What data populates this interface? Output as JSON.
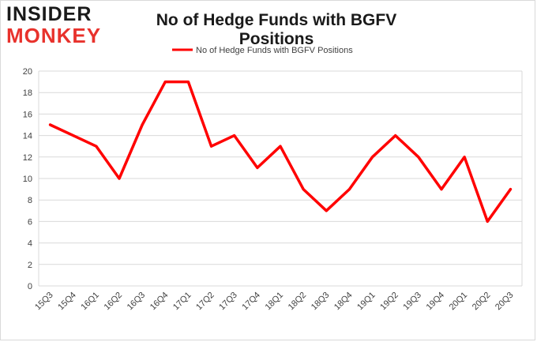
{
  "brand": {
    "line1": "INSIDER",
    "line2": "MONKEY"
  },
  "colors": {
    "series": "#ff0000",
    "grid": "#d9d9d9",
    "axis_text": "#404040",
    "brand_red": "#e8322c"
  },
  "chart_data": {
    "type": "line",
    "title": "No of Hedge Funds with BGFV Positions",
    "xlabel": "",
    "ylabel": "",
    "categories": [
      "15Q3",
      "15Q4",
      "16Q1",
      "16Q2",
      "16Q3",
      "16Q4",
      "17Q1",
      "17Q2",
      "17Q3",
      "17Q4",
      "18Q1",
      "18Q2",
      "18Q3",
      "18Q4",
      "19Q1",
      "19Q2",
      "19Q3",
      "19Q4",
      "20Q1",
      "20Q2",
      "20Q3"
    ],
    "series": [
      {
        "name": "No of Hedge Funds with BGFV Positions",
        "values": [
          15,
          14,
          13,
          10,
          15,
          19,
          19,
          13,
          14,
          11,
          13,
          9,
          7,
          9,
          12,
          14,
          12,
          9,
          12,
          6,
          9
        ]
      }
    ],
    "ylim": [
      0,
      20
    ],
    "yticks": [
      0,
      2,
      4,
      6,
      8,
      10,
      12,
      14,
      16,
      18,
      20
    ],
    "grid": true,
    "legend_position": "top-center"
  }
}
